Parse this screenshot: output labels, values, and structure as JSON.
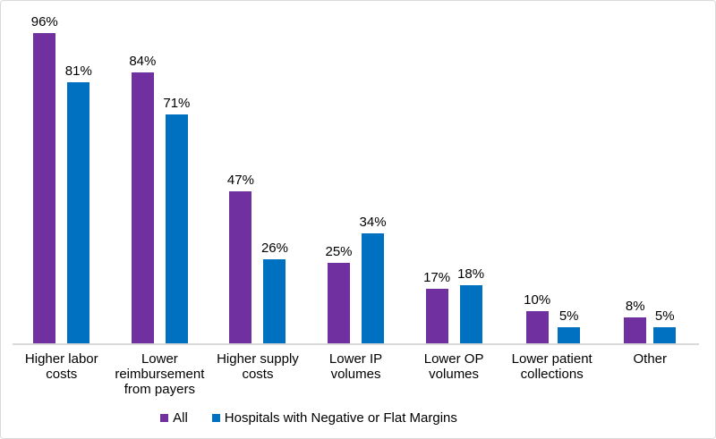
{
  "chart_data": {
    "type": "bar",
    "categories": [
      "Higher labor costs",
      "Lower reimbursement from payers",
      "Higher supply costs",
      "Lower IP volumes",
      "Lower OP volumes",
      "Lower patient collections",
      "Other"
    ],
    "series": [
      {
        "name": "All",
        "color": "#7030A0",
        "values": [
          96,
          84,
          47,
          25,
          17,
          10,
          8
        ]
      },
      {
        "name": "Hospitals with Negative or Flat Margins",
        "color": "#0070C0",
        "values": [
          81,
          71,
          26,
          34,
          18,
          5,
          5
        ]
      }
    ],
    "value_suffix": "%",
    "data_labels": true,
    "ylim": [
      0,
      100
    ],
    "grid": false,
    "y_axis_visible": false,
    "legend_position": "bottom"
  },
  "colors": {
    "frame_border": "#D9D9D9",
    "axis_line": "#D9D9D9",
    "label_text": "#000000"
  }
}
